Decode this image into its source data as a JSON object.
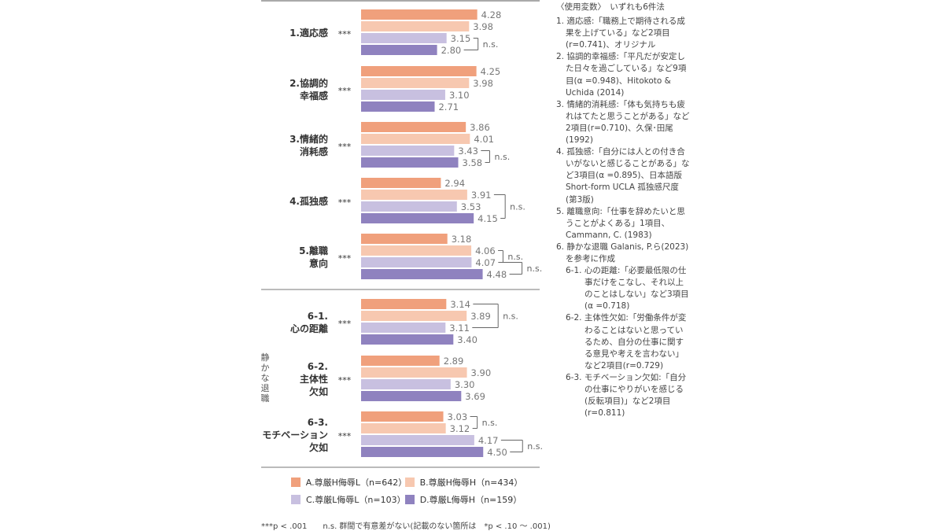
{
  "chart_data": {
    "type": "bar",
    "orientation": "horizontal",
    "xlim": [
      0,
      5
    ],
    "series": [
      {
        "name": "A.尊厳H侮辱L（n=642）",
        "color": "#f0a07c"
      },
      {
        "name": "B.尊厳H侮辱H（n=434）",
        "color": "#f7c8b0"
      },
      {
        "name": "C.尊厳L侮辱L（n=103）",
        "color": "#c8c0e0"
      },
      {
        "name": "D.尊厳L侮辱H（n=159）",
        "color": "#8f82bf"
      }
    ],
    "categories": [
      {
        "label": [
          "1.適応感"
        ],
        "sig": "***",
        "values": [
          4.28,
          3.98,
          3.15,
          2.8
        ],
        "ns": [
          [
            2,
            3
          ]
        ]
      },
      {
        "label": [
          "2.協調的",
          "幸福感"
        ],
        "sig": "***",
        "values": [
          4.25,
          3.98,
          3.1,
          2.71
        ],
        "ns": []
      },
      {
        "label": [
          "3.情緒的",
          "消耗感"
        ],
        "sig": "***",
        "values": [
          3.86,
          4.01,
          3.43,
          3.58
        ],
        "ns": [
          [
            2,
            3
          ]
        ]
      },
      {
        "label": [
          "4.孤独感"
        ],
        "sig": "***",
        "values": [
          2.94,
          3.91,
          3.53,
          4.15
        ],
        "ns": [
          [
            1,
            3
          ]
        ]
      },
      {
        "label": [
          "5.離職",
          "意向"
        ],
        "sig": "***",
        "values": [
          3.18,
          4.06,
          4.07,
          4.48
        ],
        "ns": [
          [
            1,
            2
          ],
          [
            2,
            3
          ]
        ]
      },
      {
        "label": [
          "6-1.",
          "心の距離"
        ],
        "sig": "***",
        "values": [
          3.14,
          3.89,
          3.11,
          3.4
        ],
        "ns": [
          [
            0,
            2
          ]
        ]
      },
      {
        "label": [
          "6-2.",
          "主体性",
          "欠如"
        ],
        "sig": "***",
        "values": [
          2.89,
          3.9,
          3.3,
          3.69
        ],
        "ns": []
      },
      {
        "label": [
          "6-3.",
          "モチベーション",
          "欠如"
        ],
        "sig": "***",
        "values": [
          3.03,
          3.12,
          4.17,
          4.5
        ],
        "ns": [
          [
            0,
            1
          ],
          [
            2,
            3
          ]
        ]
      }
    ],
    "group_label": "静かな退職",
    "ns_label": "n.s."
  },
  "notes": {
    "heading": "〈使用変数〉　いずれも6件法",
    "items": [
      "1. 適応感:「職務上で期待される成果を上げている」など2項目(r=0.741)、オリジナル",
      "2. 協調的幸福感:「平凡だが安定した日々を過ごしている」など9項目(α =0.948)、Hitokoto & Uchida (2014)",
      "3. 情緒的消耗感:「体も気持ちも疲れはてたと思うことがある」など2項目(r=0.710)、久保･田尾 (1992)",
      "4. 孤独感:「自分には人との付き合いがないと感じることがある」など3項目(α =0.895)、日本語版 Short-form UCLA 孤独感尺度(第3版)",
      "5. 離職意向:「仕事を辞めたいと思うことがよくある」1項目、Cammann, C. (1983)",
      "6. 静かな退職 Galanis, P.ら(2023)を参考に作成"
    ],
    "subitems": [
      "6-1. 心の距離:「必要最低限の仕事だけをこなし、それ以上のことはしない」など3項目(α =0.718)",
      "6-2. 主体性欠如:「労働条件が変わることはないと思っているため、自分の仕事に関する意見や考えを言わない」など2項目(r=0.729)",
      "6-3. モチベーション欠如:「自分の仕事にやりがいを感じる(反転項目)」など2項目(r=0.811)"
    ]
  },
  "footnote": "***p < .001　　n.s. 群間で有意差がない(記載のない箇所は　*p < .10 ～ .001)"
}
